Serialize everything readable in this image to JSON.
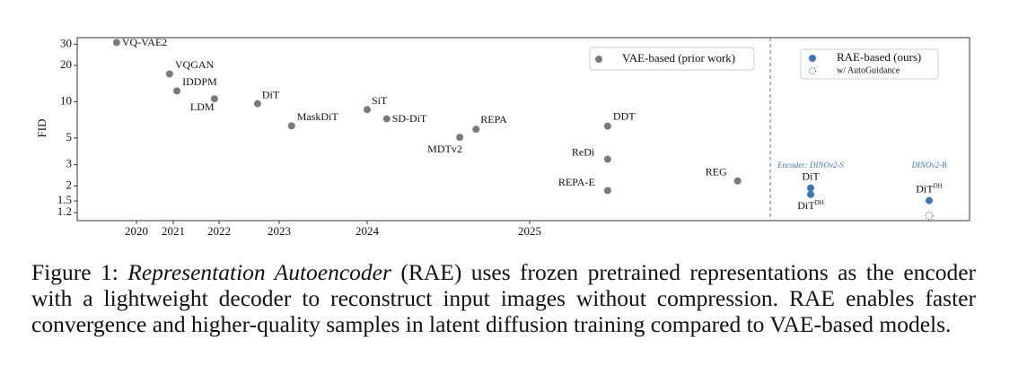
{
  "chart_data": {
    "type": "scatter",
    "y_label": "FID",
    "log_y": true,
    "ylim": [
      1.03,
      34
    ],
    "yticks": [
      30,
      20,
      10,
      5,
      3,
      2,
      1.5,
      1.2
    ],
    "xticks": [
      2020,
      2021,
      2022,
      2023,
      2024,
      2025
    ],
    "series": [
      {
        "name": "VAE-based (prior work)",
        "color": "#7a7a7a",
        "labels": [
          "VQ-VAE2",
          "VQGAN",
          "IDDPM",
          "LDM",
          "DiT",
          "MaskDiT",
          "SiT",
          "SD-DiT",
          "MDTv2",
          "REPA",
          "DDT",
          "ReDi",
          "REPA-E",
          "REG"
        ],
        "x": [
          2019.46,
          2020.9,
          2021.08,
          2021.9,
          2022.64,
          2023.14,
          2024.0,
          2024.12,
          2024.57,
          2024.67,
          2025.48,
          2025.48,
          2025.48,
          2026.28
        ],
        "values": [
          31,
          17.0,
          12.3,
          10.56,
          9.62,
          6.3,
          8.6,
          7.21,
          5.06,
          5.9,
          6.27,
          3.33,
          1.83,
          2.2
        ]
      }
    ],
    "rae": {
      "name": "RAE-based (ours)",
      "color": "#3c77b4",
      "guidance_name": "w/ AutoGuidance",
      "groups": [
        {
          "name": "Encoder: DINOv2-S",
          "points": [
            {
              "label": "DiT",
              "value": 1.92
            },
            {
              "label": "DiT",
              "label_sup": "DH",
              "value": 1.7
            }
          ]
        },
        {
          "name": "DINOv2-B",
          "points": [
            {
              "label": "DiT",
              "label_sup": "DH",
              "value": 1.51
            },
            {
              "autoguidance": true,
              "value": 1.13
            }
          ]
        }
      ]
    },
    "caption": {
      "label": "Figure 1:",
      "title": "Representation Autoencoder",
      "text": "(RAE) uses frozen pretrained representations as the encoder with a lightweight decoder to reconstruct input images without compression. RAE enables faster convergence and higher-quality samples in latent diffusion training compared to VAE-based models."
    }
  }
}
